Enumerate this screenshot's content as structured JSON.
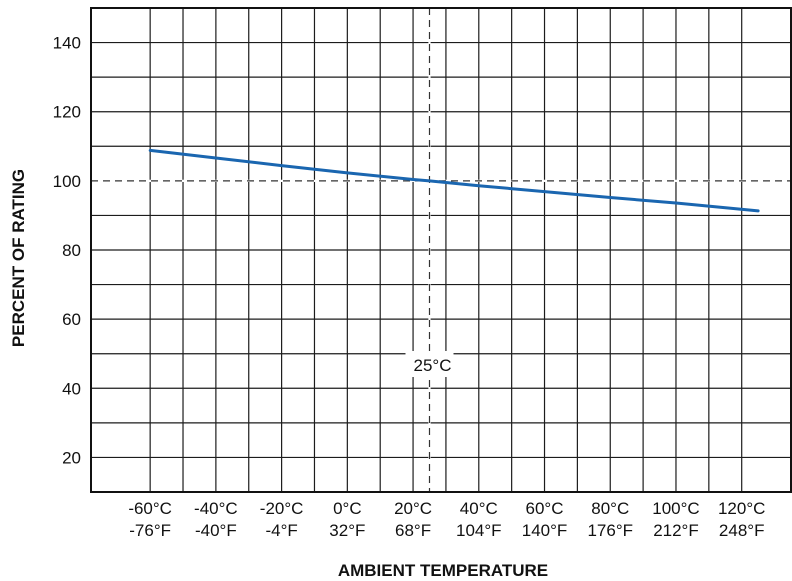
{
  "chart_data": {
    "type": "line",
    "title": "",
    "xlabel": "AMBIENT TEMPERATURE",
    "ylabel": "PERCENT OF RATING",
    "x_unit": "°C",
    "xlim": [
      -78,
      135
    ],
    "ylim": [
      10,
      150
    ],
    "y_ticks": [
      20,
      40,
      60,
      80,
      100,
      120,
      140
    ],
    "x_ticks": [
      {
        "c": -60,
        "label_c": "-60°C",
        "label_f": "-76°F"
      },
      {
        "c": -40,
        "label_c": "-40°C",
        "label_f": "-40°F"
      },
      {
        "c": -20,
        "label_c": "-20°C",
        "label_f": "-4°F"
      },
      {
        "c": 0,
        "label_c": "0°C",
        "label_f": "32°F"
      },
      {
        "c": 20,
        "label_c": "20°C",
        "label_f": "68°F"
      },
      {
        "c": 40,
        "label_c": "40°C",
        "label_f": "104°F"
      },
      {
        "c": 60,
        "label_c": "60°C",
        "label_f": "140°F"
      },
      {
        "c": 80,
        "label_c": "80°C",
        "label_f": "176°F"
      },
      {
        "c": 100,
        "label_c": "100°C",
        "label_f": "212°F"
      },
      {
        "c": 120,
        "label_c": "120°C",
        "label_f": "248°F"
      }
    ],
    "series": [
      {
        "color": "#1a66b0",
        "x": [
          -60,
          -40,
          -20,
          0,
          20,
          25,
          40,
          60,
          80,
          100,
          125
        ],
        "y": [
          108.8,
          106.6,
          104.4,
          102.3,
          100.4,
          100,
          98.6,
          96.9,
          95.2,
          93.6,
          91.3
        ]
      }
    ],
    "reference_lines": [
      {
        "axis": "x",
        "value": 25,
        "style": "dashed"
      },
      {
        "axis": "y",
        "value": 100,
        "style": "dashed"
      }
    ],
    "annotations": [
      {
        "text": "25°C",
        "x": 25,
        "y": 45
      }
    ],
    "grid": true,
    "legend": "none"
  }
}
